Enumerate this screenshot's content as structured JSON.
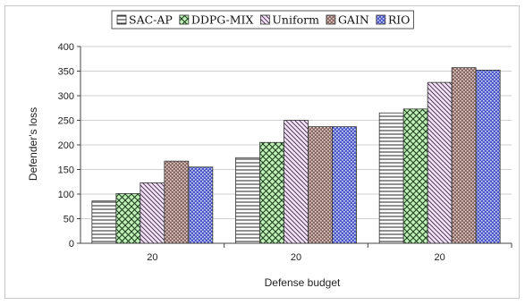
{
  "chart_data": {
    "type": "bar",
    "categories": [
      "20",
      "20",
      "20"
    ],
    "series": [
      {
        "name": "SAC-AP",
        "values": [
          86,
          174,
          265
        ],
        "pattern": "hlines",
        "color": "#ffffff"
      },
      {
        "name": "DDPG-MIX",
        "values": [
          101,
          205,
          273
        ],
        "pattern": "crosshatch",
        "color": "#bff0b8"
      },
      {
        "name": "Uniform",
        "values": [
          123,
          250,
          327
        ],
        "pattern": "diag",
        "color": "#f0d8f4"
      },
      {
        "name": "GAIN",
        "values": [
          167,
          237,
          357
        ],
        "pattern": "dots",
        "color": "#9c7c78"
      },
      {
        "name": "RIO",
        "values": [
          155,
          237,
          352
        ],
        "pattern": "dotsblue",
        "color": "#6a78d8"
      }
    ],
    "xlabel": "Defense budget",
    "ylabel": "Defender's loss",
    "ylim": [
      0,
      400
    ],
    "yticks": [
      0,
      50,
      100,
      150,
      200,
      250,
      300,
      350,
      400
    ],
    "grid": true,
    "legend": "top"
  }
}
